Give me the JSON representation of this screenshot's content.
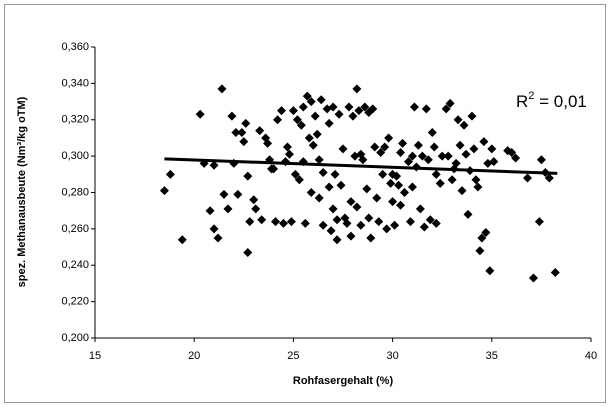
{
  "chart_data": {
    "type": "scatter",
    "xlabel": "Rohfasergehalt (%)",
    "ylabel": "spez. Methanausbeute (Nm³/kg oTM)",
    "annotation": "R² = 0,01",
    "xlim": [
      15,
      40
    ],
    "xticks": [
      15,
      20,
      25,
      30,
      35,
      40
    ],
    "ylim": [
      0.2,
      0.36
    ],
    "yticks": [
      {
        "value": 0.2,
        "label": "0,200"
      },
      {
        "value": 0.22,
        "label": "0,220"
      },
      {
        "value": 0.24,
        "label": "0,240"
      },
      {
        "value": 0.26,
        "label": "0,260"
      },
      {
        "value": 0.28,
        "label": "0,280"
      },
      {
        "value": 0.3,
        "label": "0,300"
      },
      {
        "value": 0.32,
        "label": "0,320"
      },
      {
        "value": 0.34,
        "label": "0,340"
      },
      {
        "value": 0.36,
        "label": "0,360"
      }
    ],
    "grid": false,
    "color": "#000000",
    "x": [
      18.5,
      18.8,
      19.4,
      20.3,
      20.5,
      20.8,
      21.0,
      21.0,
      21.2,
      21.4,
      21.5,
      21.7,
      21.9,
      22.0,
      22.1,
      22.2,
      22.4,
      22.5,
      22.6,
      22.7,
      22.7,
      22.8,
      23.0,
      23.1,
      23.3,
      23.4,
      23.6,
      23.7,
      23.8,
      23.9,
      24.0,
      24.1,
      24.2,
      24.4,
      24.5,
      24.6,
      24.7,
      24.8,
      24.9,
      25.0,
      25.1,
      25.2,
      25.3,
      25.4,
      25.5,
      25.5,
      25.6,
      25.7,
      25.8,
      25.9,
      25.9,
      26.0,
      26.1,
      26.2,
      26.3,
      26.3,
      26.4,
      26.5,
      26.5,
      26.7,
      26.8,
      26.8,
      26.9,
      27.0,
      27.0,
      27.1,
      27.2,
      27.2,
      27.3,
      27.4,
      27.5,
      27.6,
      27.7,
      27.8,
      27.9,
      27.9,
      28.0,
      28.1,
      28.2,
      28.2,
      28.3,
      28.4,
      28.4,
      28.5,
      28.6,
      28.7,
      28.8,
      28.8,
      28.9,
      29.0,
      29.1,
      29.2,
      29.3,
      29.4,
      29.5,
      29.6,
      29.7,
      29.8,
      29.9,
      30.0,
      30.0,
      30.1,
      30.2,
      30.3,
      30.4,
      30.4,
      30.5,
      30.6,
      30.8,
      30.9,
      31.0,
      31.0,
      31.1,
      31.2,
      31.3,
      31.4,
      31.5,
      31.6,
      31.7,
      31.8,
      31.9,
      32.0,
      32.1,
      32.2,
      32.2,
      32.4,
      32.5,
      32.7,
      32.8,
      32.9,
      33.0,
      33.1,
      33.2,
      33.3,
      33.4,
      33.5,
      33.6,
      33.7,
      33.8,
      33.9,
      34.0,
      34.1,
      34.2,
      34.3,
      34.4,
      34.5,
      34.6,
      34.7,
      34.8,
      34.9,
      35.0,
      35.1,
      35.8,
      36.0,
      36.2,
      36.8,
      37.1,
      37.4,
      37.5,
      37.7,
      37.9,
      38.2
    ],
    "y": [
      0.281,
      0.29,
      0.254,
      0.323,
      0.296,
      0.27,
      0.295,
      0.26,
      0.255,
      0.337,
      0.279,
      0.271,
      0.322,
      0.296,
      0.313,
      0.279,
      0.313,
      0.308,
      0.318,
      0.289,
      0.247,
      0.264,
      0.276,
      0.271,
      0.314,
      0.265,
      0.31,
      0.307,
      0.298,
      0.293,
      0.293,
      0.264,
      0.32,
      0.325,
      0.263,
      0.297,
      0.305,
      0.301,
      0.264,
      0.325,
      0.29,
      0.32,
      0.287,
      0.317,
      0.327,
      0.297,
      0.263,
      0.333,
      0.31,
      0.33,
      0.28,
      0.306,
      0.322,
      0.312,
      0.298,
      0.277,
      0.331,
      0.291,
      0.262,
      0.326,
      0.318,
      0.283,
      0.259,
      0.327,
      0.271,
      0.29,
      0.265,
      0.254,
      0.323,
      0.284,
      0.304,
      0.266,
      0.263,
      0.327,
      0.275,
      0.256,
      0.322,
      0.3,
      0.337,
      0.272,
      0.325,
      0.301,
      0.262,
      0.298,
      0.327,
      0.282,
      0.324,
      0.266,
      0.255,
      0.326,
      0.305,
      0.277,
      0.264,
      0.302,
      0.29,
      0.305,
      0.26,
      0.31,
      0.285,
      0.29,
      0.275,
      0.262,
      0.289,
      0.284,
      0.302,
      0.273,
      0.307,
      0.28,
      0.297,
      0.264,
      0.3,
      0.283,
      0.327,
      0.294,
      0.306,
      0.271,
      0.3,
      0.261,
      0.326,
      0.298,
      0.265,
      0.313,
      0.305,
      0.29,
      0.263,
      0.285,
      0.3,
      0.326,
      0.3,
      0.329,
      0.287,
      0.293,
      0.296,
      0.32,
      0.306,
      0.281,
      0.317,
      0.301,
      0.268,
      0.292,
      0.322,
      0.304,
      0.287,
      0.283,
      0.248,
      0.255,
      0.308,
      0.258,
      0.296,
      0.237,
      0.304,
      0.297,
      0.303,
      0.302,
      0.299,
      0.288,
      0.233,
      0.264,
      0.298,
      0.291,
      0.288,
      0.236
    ],
    "trendline": {
      "x": [
        18.5,
        38.3
      ],
      "y": [
        0.2985,
        0.2905
      ]
    }
  }
}
